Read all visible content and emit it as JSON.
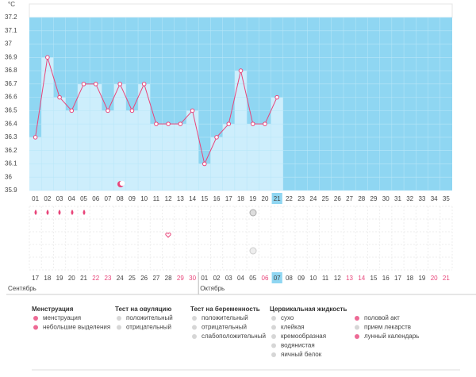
{
  "chart_data": {
    "type": "line",
    "y_unit": "°C",
    "categories": [
      "01",
      "02",
      "03",
      "04",
      "05",
      "06",
      "07",
      "08",
      "09",
      "10",
      "11",
      "12",
      "13",
      "14",
      "15",
      "16",
      "17",
      "18",
      "19",
      "20",
      "21",
      "22",
      "23",
      "24",
      "25",
      "26",
      "27",
      "28",
      "29",
      "30",
      "31",
      "32",
      "33",
      "34",
      "35"
    ],
    "current_day": "21",
    "values": [
      36.3,
      36.9,
      36.6,
      36.5,
      36.7,
      36.7,
      36.5,
      36.7,
      36.5,
      36.7,
      36.4,
      36.4,
      36.4,
      36.5,
      36.1,
      36.3,
      36.4,
      36.8,
      36.4,
      36.4,
      36.6,
      null,
      null,
      null,
      null,
      null,
      null,
      null,
      null,
      null,
      null,
      null,
      null,
      null,
      null
    ],
    "color": "#e8457a",
    "ylim": [
      35.9,
      37.2
    ],
    "yticks": [
      35.9,
      36,
      36.1,
      36.2,
      36.3,
      36.4,
      36.5,
      36.6,
      36.7,
      36.8,
      36.9,
      37,
      37.1,
      37.2
    ],
    "grid": true,
    "dates": [
      {
        "label": "17",
        "weekend": false
      },
      {
        "label": "18",
        "weekend": false
      },
      {
        "label": "19",
        "weekend": false
      },
      {
        "label": "20",
        "weekend": false
      },
      {
        "label": "21",
        "weekend": false
      },
      {
        "label": "22",
        "weekend": true
      },
      {
        "label": "23",
        "weekend": true
      },
      {
        "label": "24",
        "weekend": false
      },
      {
        "label": "25",
        "weekend": false
      },
      {
        "label": "26",
        "weekend": false
      },
      {
        "label": "27",
        "weekend": false
      },
      {
        "label": "28",
        "weekend": false
      },
      {
        "label": "29",
        "weekend": true
      },
      {
        "label": "30",
        "weekend": true
      },
      {
        "label": "01",
        "weekend": false
      },
      {
        "label": "02",
        "weekend": false
      },
      {
        "label": "03",
        "weekend": false
      },
      {
        "label": "04",
        "weekend": false
      },
      {
        "label": "05",
        "weekend": false
      },
      {
        "label": "06",
        "weekend": true
      },
      {
        "label": "07",
        "weekend": false,
        "highlight": true
      },
      {
        "label": "08",
        "weekend": false
      },
      {
        "label": "09",
        "weekend": false
      },
      {
        "label": "10",
        "weekend": false
      },
      {
        "label": "11",
        "weekend": false
      },
      {
        "label": "12",
        "weekend": false
      },
      {
        "label": "13",
        "weekend": true
      },
      {
        "label": "14",
        "weekend": true
      },
      {
        "label": "15",
        "weekend": false
      },
      {
        "label": "16",
        "weekend": false
      },
      {
        "label": "17",
        "weekend": false
      },
      {
        "label": "18",
        "weekend": false
      },
      {
        "label": "19",
        "weekend": false
      },
      {
        "label": "20",
        "weekend": true
      },
      {
        "label": "21",
        "weekend": true
      }
    ],
    "months": [
      {
        "label": "Сентябрь",
        "start": 0
      },
      {
        "label": "Октябрь",
        "start": 14
      }
    ],
    "legend": [
      {
        "title": "Менструация",
        "items": [
          "менструация",
          "небольшие выделения"
        ]
      },
      {
        "title": "Тест на овуляцию",
        "items": [
          "положительный",
          "отрицательный"
        ]
      },
      {
        "title": "Тест на беременность",
        "items": [
          "положительный",
          "отрицательный",
          "слабоположительный"
        ]
      },
      {
        "title": "Цервикальная жидкость",
        "items": [
          "сухо",
          "клейкая",
          "кремообразная",
          "водянистая",
          "яичный белок"
        ]
      },
      {
        "title": null,
        "items": [
          "половой акт",
          "прием лекарств",
          "лунный календарь"
        ]
      }
    ]
  }
}
